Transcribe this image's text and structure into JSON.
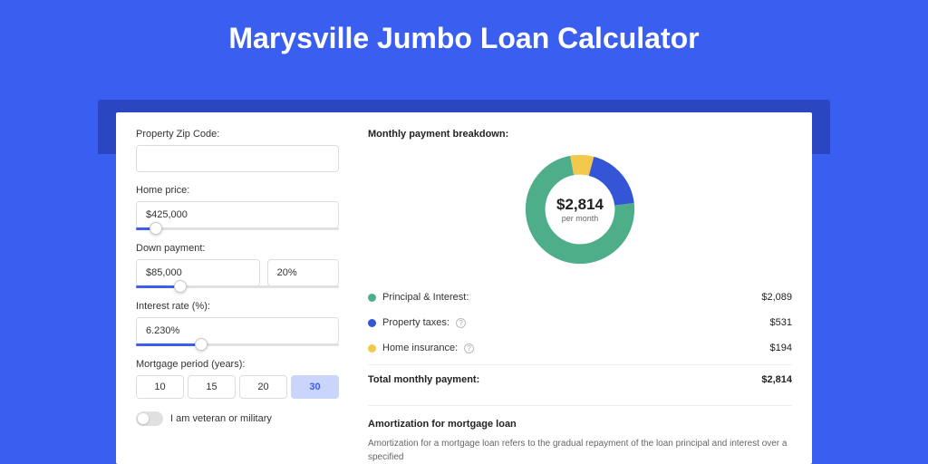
{
  "page": {
    "title": "Marysville Jumbo Loan Calculator",
    "background_color": "#3a5ff0",
    "shadow_color": "#2a46c0",
    "card_color": "#ffffff"
  },
  "form": {
    "zip": {
      "label": "Property Zip Code:",
      "value": ""
    },
    "home_price": {
      "label": "Home price:",
      "value": "$425,000",
      "slider_pct": 10
    },
    "down_payment": {
      "label": "Down payment:",
      "value": "$85,000",
      "pct": "20%",
      "slider_pct": 22
    },
    "interest_rate": {
      "label": "Interest rate (%):",
      "value": "6.230%",
      "slider_pct": 32
    },
    "period": {
      "label": "Mortgage period (years):",
      "options": [
        "10",
        "15",
        "20",
        "30"
      ],
      "selected": "30"
    },
    "veteran": {
      "label": "I am veteran or military",
      "on": false
    }
  },
  "breakdown": {
    "title": "Monthly payment breakdown:",
    "center_amount": "$2,814",
    "center_sub": "per month",
    "items": [
      {
        "label": "Principal & Interest:",
        "value": "$2,089",
        "color": "#4fae8a",
        "pct": 74,
        "info": false
      },
      {
        "label": "Property taxes:",
        "value": "$531",
        "color": "#3456d6",
        "pct": 19,
        "info": true
      },
      {
        "label": "Home insurance:",
        "value": "$194",
        "color": "#f2c94c",
        "pct": 7,
        "info": true
      }
    ],
    "total_label": "Total monthly payment:",
    "total_value": "$2,814"
  },
  "amortization": {
    "title": "Amortization for mortgage loan",
    "text": "Amortization for a mortgage loan refers to the gradual repayment of the loan principal and interest over a specified"
  },
  "style": {
    "slider_fill": "#3a5ff0",
    "slider_track": "#e0e0e0",
    "period_selected_bg": "#c9d5fb",
    "period_selected_fg": "#3a5ff0",
    "label_fontsize": 11,
    "title_fontsize": 32
  }
}
